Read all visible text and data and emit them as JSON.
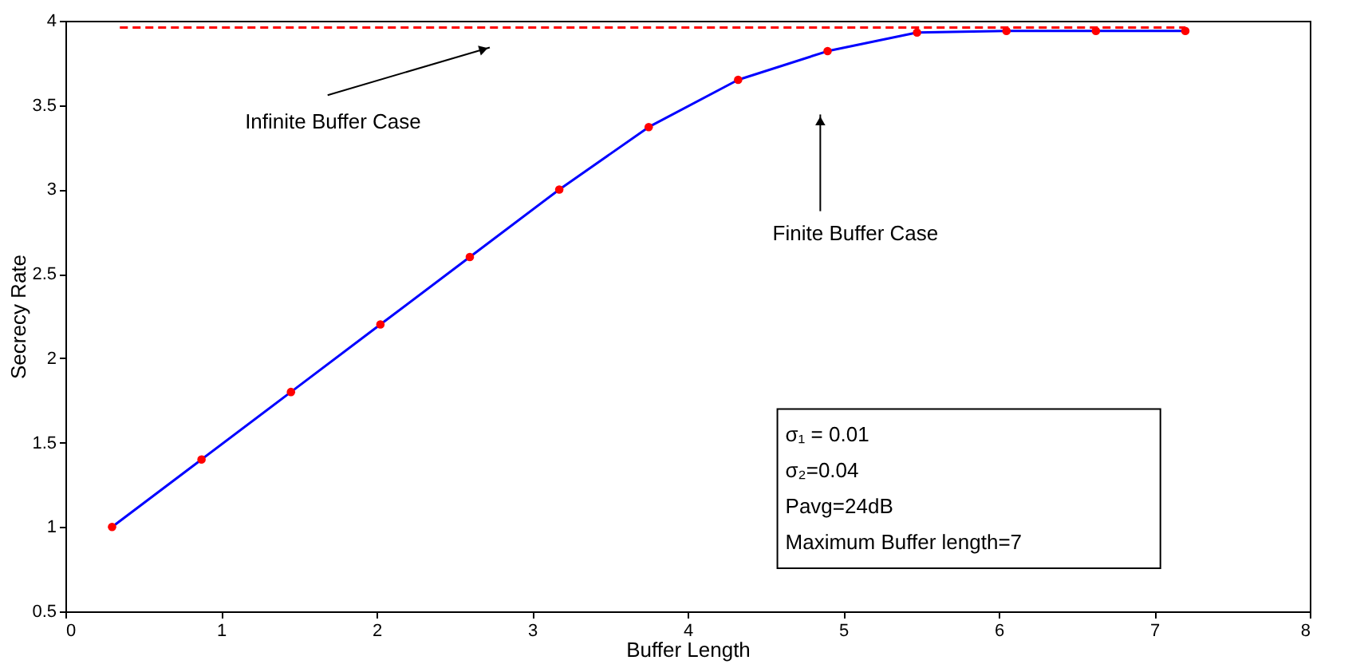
{
  "chart_data": {
    "type": "line",
    "xlabel": "Buffer Length",
    "ylabel": "Secrecy Rate",
    "xlim": [
      0,
      8
    ],
    "ylim": [
      0.5,
      4
    ],
    "xticks": [
      0,
      1,
      2,
      3,
      4,
      5,
      6,
      7,
      8
    ],
    "yticks": [
      0.5,
      1,
      1.5,
      2,
      2.5,
      3,
      3.5,
      4
    ],
    "grid": false,
    "series": [
      {
        "color": "#0000ff",
        "marker": "circle",
        "line_style": "solid",
        "x": [
          0.3,
          0.875,
          1.45,
          2.025,
          2.6,
          3.175,
          3.75,
          4.325,
          4.9,
          5.475,
          6.05,
          6.625,
          7.2
        ],
        "values": [
          1.0,
          1.4,
          1.8,
          2.2,
          2.6,
          3.0,
          3.37,
          3.65,
          3.82,
          3.93,
          3.94,
          3.94,
          3.94
        ],
        "colors": [
          "#ff0000",
          "#ff0000",
          "#ff0000",
          "#ff0000",
          "#ff0000",
          "#ff0000",
          "#ff0000",
          "#ff0000",
          "#ff0000",
          "#ff0000",
          "#ff0000",
          "#ff0000",
          "#ff0000"
        ]
      },
      {
        "color": "#ff0000",
        "marker": "none",
        "line_style": "dashed",
        "x": [
          0.35,
          7.2
        ],
        "values": [
          3.96,
          3.96
        ]
      }
    ],
    "annotations": [
      "Infinite Buffer Case",
      "Finite Buffer Case",
      "σ₁ = 0.01",
      "σ₂=0.04",
      "Pavg=24dB",
      "Maximum Buffer length=7"
    ]
  }
}
